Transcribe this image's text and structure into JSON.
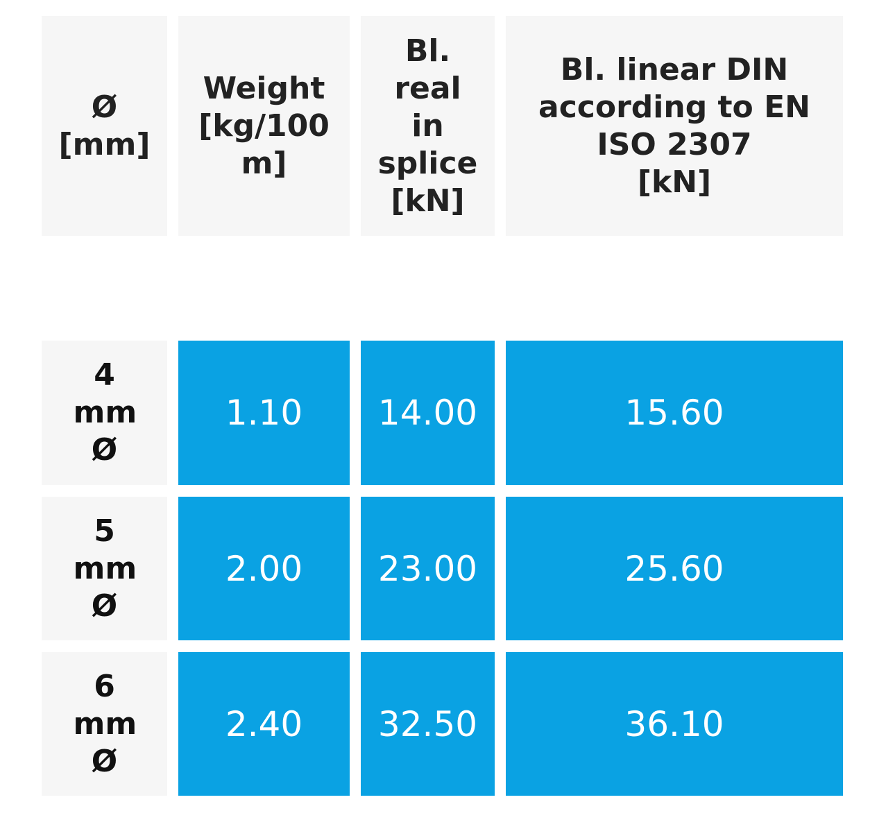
{
  "headers": [
    "Ø\n[mm]",
    "Weight\n[kg/100\nm]",
    "Bl.\nreal\nin\nsplice\n[kN]",
    "Bl. linear DIN\naccording to EN\nISO 2307\n[kN]"
  ],
  "rows": [
    {
      "diameter": "4\nmm\nØ",
      "weight": "1.10",
      "real_in_splice": "14.00",
      "linear_din": "15.60"
    },
    {
      "diameter": "5\nmm\nØ",
      "weight": "2.00",
      "real_in_splice": "23.00",
      "linear_din": "25.60"
    },
    {
      "diameter": "6\nmm\nØ",
      "weight": "2.40",
      "real_in_splice": "32.50",
      "linear_din": "36.10"
    }
  ],
  "colors": {
    "header_bg": "#f6f6f6",
    "value_bg": "#0aa2e3",
    "value_text": "#ffffff"
  }
}
